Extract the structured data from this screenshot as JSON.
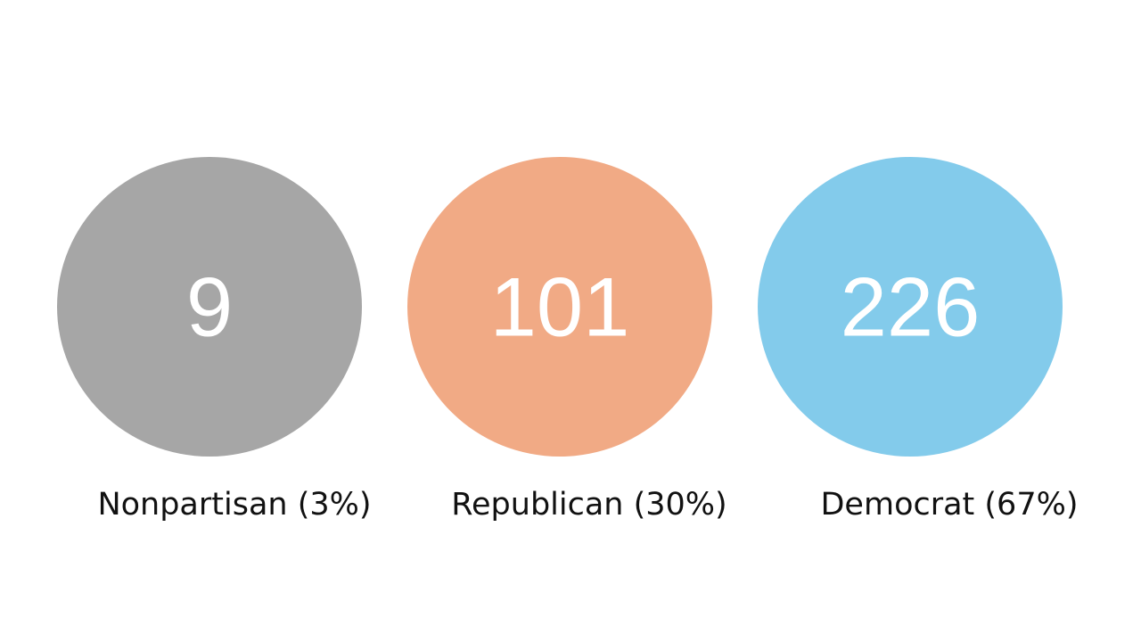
{
  "items": [
    {
      "value": 9,
      "label": "Nonpartisan (3%)",
      "color": "#a6a6a6"
    },
    {
      "value": 101,
      "label": "Republican (30%)",
      "color": "#f1aa85"
    },
    {
      "value": 226,
      "label": "Democrat (67%)",
      "color": "#83cbeb"
    }
  ]
}
